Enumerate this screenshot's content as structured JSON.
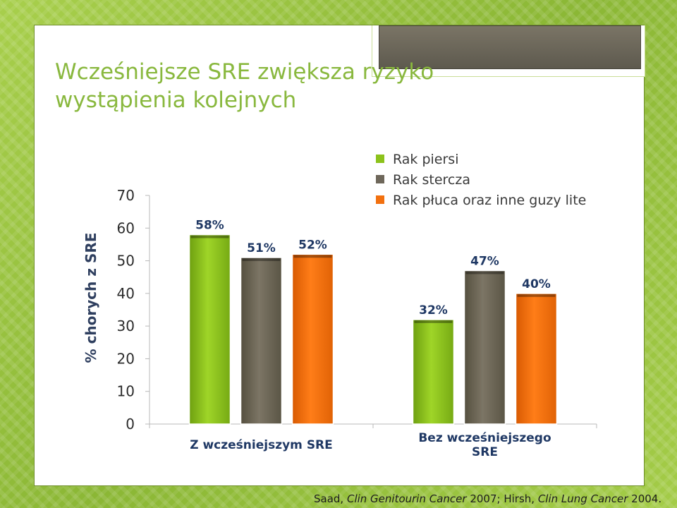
{
  "slide": {
    "title_line1": "Wcześniejsze SRE zwiększa ryzyko",
    "title_line2": "wystąpienia kolejnych",
    "footnote": {
      "prefix": "Saad, ",
      "journal1": "Clin Genitourin Cancer",
      "middle": " 2007; Hirsh, ",
      "journal2": "Clin Lung Cancer",
      "suffix": " 2004."
    }
  },
  "colors": {
    "background": "#94c13d",
    "title": "#89b83e",
    "label_blue": "#1f3864",
    "axis_label": "#2f3f5f"
  },
  "chart_data": {
    "type": "bar",
    "ylabel": "% chorych z SRE",
    "ylim": [
      0,
      70
    ],
    "yticks": [
      0,
      10,
      20,
      30,
      40,
      50,
      60,
      70
    ],
    "grid": false,
    "legend_position": "top-right",
    "categories": [
      "Z wcześniejszym SRE",
      "Bez wcześniejszego SRE"
    ],
    "category_lines": [
      [
        "Z wcześniejszym SRE"
      ],
      [
        "Bez wcześniejszego",
        "SRE"
      ]
    ],
    "series": [
      {
        "name": "Rak piersi",
        "color": "#8cc21b",
        "values": [
          58,
          32
        ],
        "labels": [
          "58%",
          "32%"
        ]
      },
      {
        "name": "Rak stercza",
        "color": "#6e675a",
        "values": [
          51,
          47
        ],
        "labels": [
          "51%",
          "47%"
        ]
      },
      {
        "name": "Rak płuca oraz inne guzy lite",
        "color": "#f2700f",
        "values": [
          52,
          40
        ],
        "labels": [
          "52%",
          "40%"
        ]
      }
    ]
  }
}
